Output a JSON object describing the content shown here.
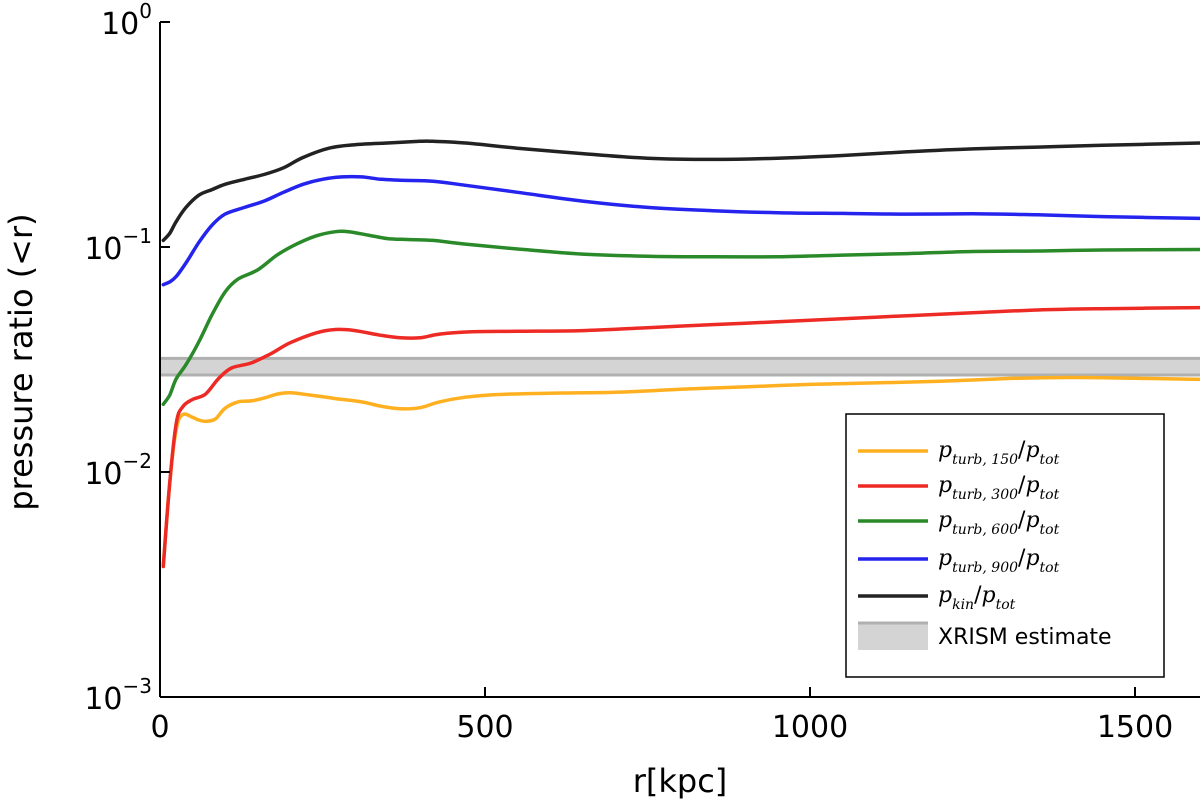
{
  "chart_data": {
    "type": "line",
    "xlabel": "r[kpc]",
    "ylabel": "pressure ratio (<r)",
    "xlim": [
      0,
      1600
    ],
    "ylim": [
      0.001,
      1
    ],
    "yscale": "log",
    "x_ticks": [
      {
        "value": 0,
        "label": "0"
      },
      {
        "value": 500,
        "label": "500"
      },
      {
        "value": 1000,
        "label": "1000"
      },
      {
        "value": 1500,
        "label": "1500"
      }
    ],
    "y_ticks": [
      {
        "value": 0.001,
        "base": "10",
        "exp": "−3"
      },
      {
        "value": 0.01,
        "base": "10",
        "exp": "−2"
      },
      {
        "value": 0.1,
        "base": "10",
        "exp": "−1"
      },
      {
        "value": 1,
        "base": "10",
        "exp": "0"
      }
    ],
    "band": {
      "name": "XRISM estimate",
      "low": 0.027,
      "high": 0.032,
      "color": "#b0b0b0"
    },
    "series": [
      {
        "name": "p_turb,150/p_tot",
        "main": "p",
        "sub": "turb, 150",
        "den": "p",
        "den_sub": "tot",
        "color": "#ffb020",
        "points": [
          [
            5,
            0.0038
          ],
          [
            15,
            0.009
          ],
          [
            25,
            0.0155
          ],
          [
            35,
            0.018
          ],
          [
            50,
            0.0175
          ],
          [
            60,
            0.017
          ],
          [
            70,
            0.0168
          ],
          [
            85,
            0.0172
          ],
          [
            100,
            0.0192
          ],
          [
            120,
            0.0205
          ],
          [
            140,
            0.0207
          ],
          [
            160,
            0.0213
          ],
          [
            180,
            0.0222
          ],
          [
            200,
            0.0225
          ],
          [
            230,
            0.022
          ],
          [
            270,
            0.0212
          ],
          [
            310,
            0.0205
          ],
          [
            340,
            0.0196
          ],
          [
            370,
            0.0191
          ],
          [
            400,
            0.0193
          ],
          [
            430,
            0.0205
          ],
          [
            470,
            0.0215
          ],
          [
            520,
            0.0221
          ],
          [
            600,
            0.0224
          ],
          [
            700,
            0.0226
          ],
          [
            800,
            0.0233
          ],
          [
            900,
            0.0239
          ],
          [
            1000,
            0.0245
          ],
          [
            1100,
            0.0249
          ],
          [
            1200,
            0.0253
          ],
          [
            1300,
            0.026
          ],
          [
            1400,
            0.0263
          ],
          [
            1500,
            0.0261
          ],
          [
            1600,
            0.0258
          ]
        ]
      },
      {
        "name": "p_turb,300/p_tot",
        "main": "p",
        "sub": "turb, 300",
        "den": "p",
        "den_sub": "tot",
        "color": "#ee2a24",
        "points": [
          [
            5,
            0.0038
          ],
          [
            15,
            0.009
          ],
          [
            25,
            0.0165
          ],
          [
            35,
            0.0195
          ],
          [
            50,
            0.021
          ],
          [
            70,
            0.0222
          ],
          [
            90,
            0.026
          ],
          [
            110,
            0.029
          ],
          [
            140,
            0.0305
          ],
          [
            170,
            0.0335
          ],
          [
            200,
            0.0375
          ],
          [
            240,
            0.0415
          ],
          [
            270,
            0.043
          ],
          [
            300,
            0.0425
          ],
          [
            340,
            0.0405
          ],
          [
            370,
            0.0395
          ],
          [
            400,
            0.0395
          ],
          [
            430,
            0.041
          ],
          [
            480,
            0.042
          ],
          [
            550,
            0.0422
          ],
          [
            650,
            0.0425
          ],
          [
            750,
            0.0438
          ],
          [
            850,
            0.0452
          ],
          [
            950,
            0.0465
          ],
          [
            1050,
            0.048
          ],
          [
            1150,
            0.0495
          ],
          [
            1250,
            0.051
          ],
          [
            1350,
            0.0525
          ],
          [
            1450,
            0.0532
          ],
          [
            1600,
            0.0538
          ]
        ]
      },
      {
        "name": "p_turb,600/p_tot",
        "main": "p",
        "sub": "turb, 600",
        "den": "p",
        "den_sub": "tot",
        "color": "#2a8a2a",
        "points": [
          [
            5,
            0.02
          ],
          [
            15,
            0.022
          ],
          [
            25,
            0.026
          ],
          [
            40,
            0.03
          ],
          [
            60,
            0.038
          ],
          [
            80,
            0.05
          ],
          [
            100,
            0.063
          ],
          [
            120,
            0.072
          ],
          [
            150,
            0.079
          ],
          [
            180,
            0.092
          ],
          [
            210,
            0.103
          ],
          [
            240,
            0.112
          ],
          [
            270,
            0.117
          ],
          [
            290,
            0.117
          ],
          [
            320,
            0.113
          ],
          [
            350,
            0.109
          ],
          [
            380,
            0.108
          ],
          [
            420,
            0.107
          ],
          [
            470,
            0.103
          ],
          [
            550,
            0.098
          ],
          [
            650,
            0.093
          ],
          [
            750,
            0.091
          ],
          [
            850,
            0.0905
          ],
          [
            950,
            0.0905
          ],
          [
            1050,
            0.092
          ],
          [
            1150,
            0.0935
          ],
          [
            1250,
            0.0955
          ],
          [
            1350,
            0.096
          ],
          [
            1450,
            0.097
          ],
          [
            1600,
            0.0975
          ]
        ]
      },
      {
        "name": "p_turb,900/p_tot",
        "main": "p",
        "sub": "turb, 900",
        "den": "p",
        "den_sub": "tot",
        "color": "#2424ee",
        "points": [
          [
            5,
            0.068
          ],
          [
            15,
            0.07
          ],
          [
            25,
            0.074
          ],
          [
            40,
            0.085
          ],
          [
            60,
            0.105
          ],
          [
            80,
            0.125
          ],
          [
            100,
            0.14
          ],
          [
            130,
            0.15
          ],
          [
            160,
            0.16
          ],
          [
            190,
            0.175
          ],
          [
            220,
            0.19
          ],
          [
            250,
            0.2
          ],
          [
            280,
            0.205
          ],
          [
            310,
            0.205
          ],
          [
            340,
            0.2
          ],
          [
            370,
            0.198
          ],
          [
            420,
            0.196
          ],
          [
            470,
            0.188
          ],
          [
            550,
            0.175
          ],
          [
            650,
            0.16
          ],
          [
            750,
            0.15
          ],
          [
            850,
            0.145
          ],
          [
            950,
            0.142
          ],
          [
            1050,
            0.141
          ],
          [
            1150,
            0.14
          ],
          [
            1250,
            0.1405
          ],
          [
            1350,
            0.139
          ],
          [
            1450,
            0.1365
          ],
          [
            1600,
            0.134
          ]
        ]
      },
      {
        "name": "p_kin/p_tot",
        "main": "p",
        "sub": "kin",
        "den": "p",
        "den_sub": "tot",
        "color": "#222222",
        "points": [
          [
            5,
            0.107
          ],
          [
            15,
            0.115
          ],
          [
            25,
            0.13
          ],
          [
            40,
            0.15
          ],
          [
            60,
            0.17
          ],
          [
            80,
            0.18
          ],
          [
            100,
            0.19
          ],
          [
            130,
            0.2
          ],
          [
            160,
            0.21
          ],
          [
            190,
            0.225
          ],
          [
            220,
            0.25
          ],
          [
            260,
            0.275
          ],
          [
            300,
            0.285
          ],
          [
            350,
            0.29
          ],
          [
            400,
            0.295
          ],
          [
            420,
            0.295
          ],
          [
            470,
            0.29
          ],
          [
            550,
            0.275
          ],
          [
            650,
            0.26
          ],
          [
            750,
            0.248
          ],
          [
            850,
            0.245
          ],
          [
            950,
            0.248
          ],
          [
            1050,
            0.255
          ],
          [
            1150,
            0.265
          ],
          [
            1250,
            0.273
          ],
          [
            1350,
            0.278
          ],
          [
            1450,
            0.283
          ],
          [
            1600,
            0.29
          ]
        ]
      }
    ],
    "legend_position": "bottom-right"
  }
}
